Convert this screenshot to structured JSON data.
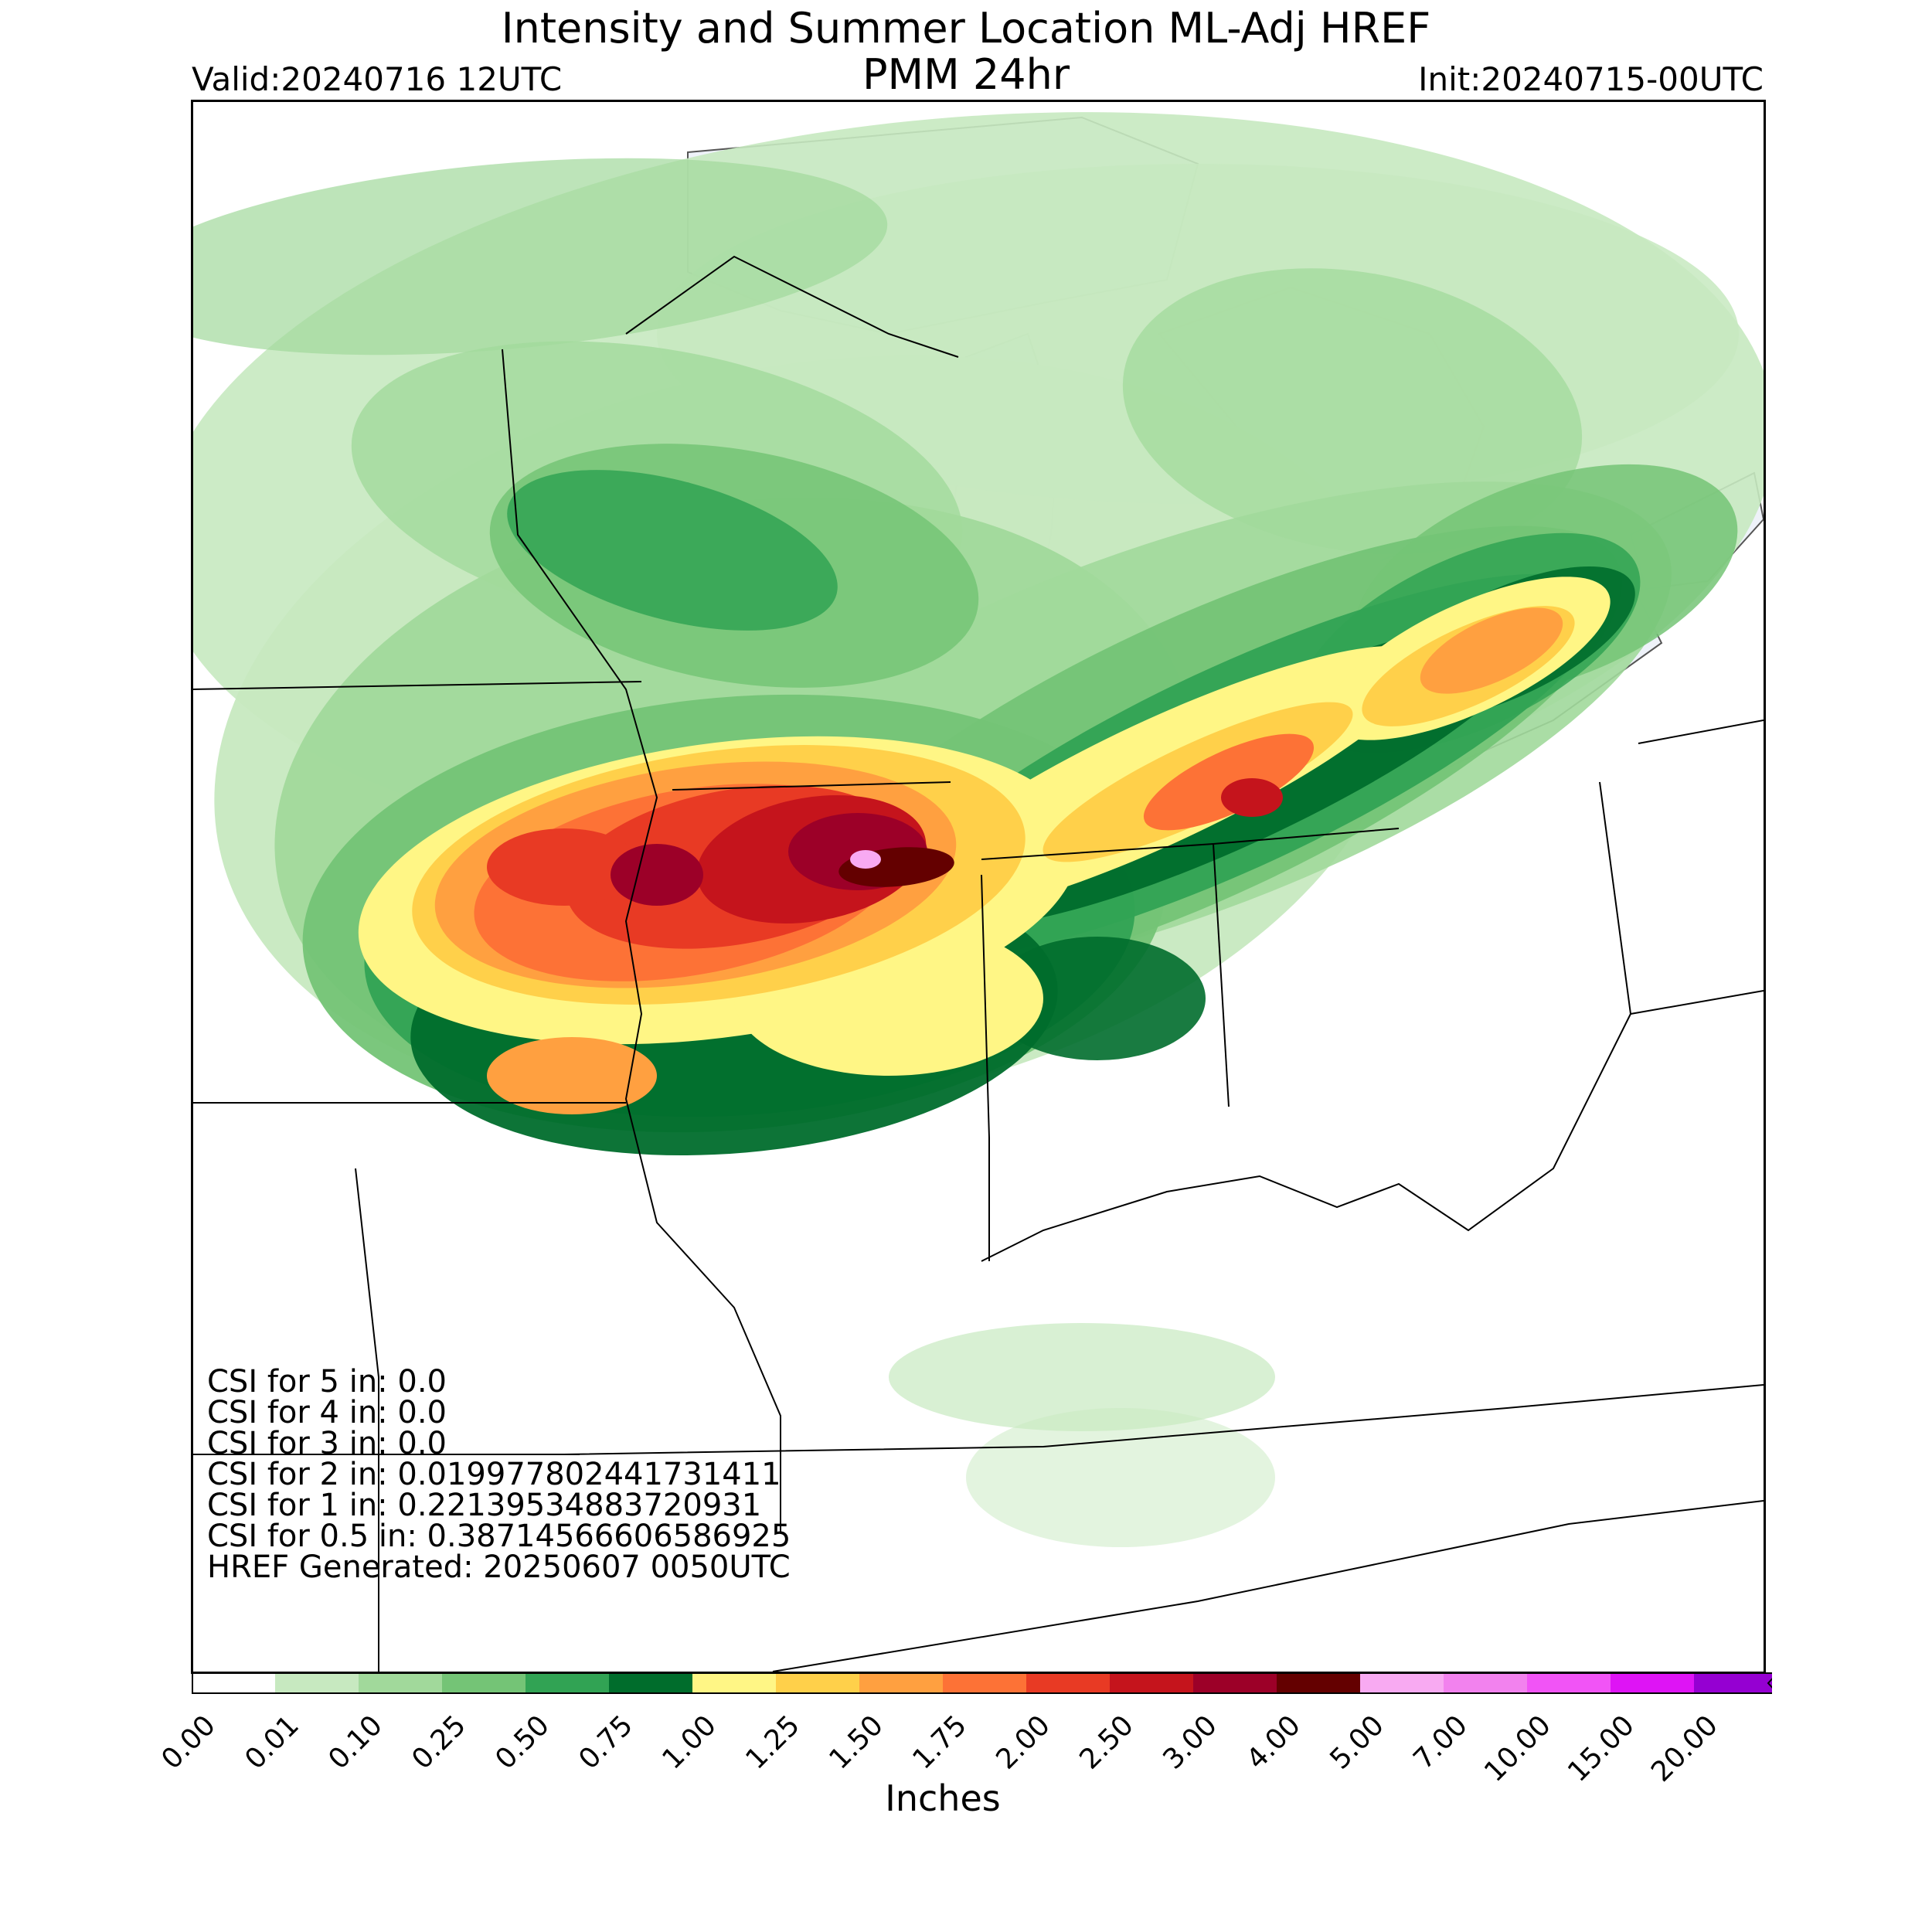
{
  "title": {
    "line1": "Intensity and Summer Location ML-Adj HREF",
    "line2": "PMM 24hr",
    "valid": "Valid:20240716 12UTC",
    "init": "Init:20240715-00UTC"
  },
  "stats": [
    "CSI for 5 in: 0.0",
    "CSI for 4 in: 0.0",
    "CSI for 3 in: 0.0",
    "CSI for 2 in: 0.019977802441731411",
    "CSI for 1 in: 0.22139534883720931",
    "CSI for 0.5 in: 0.38714566606586925",
    "HREF Generated: 20250607 0050UTC"
  ],
  "colorbar": {
    "label": "Inches",
    "ticks": [
      "0.00",
      "0.01",
      "0.10",
      "0.25",
      "0.50",
      "0.75",
      "1.00",
      "1.25",
      "1.50",
      "1.75",
      "2.00",
      "2.50",
      "3.00",
      "4.00",
      "5.00",
      "7.00",
      "10.00",
      "15.00",
      "20.00"
    ],
    "colors": [
      "#ffffff",
      "#c7e9c0",
      "#a1d99b",
      "#74c476",
      "#31a354",
      "#006d2c",
      "#fff685",
      "#ffd04a",
      "#ffa040",
      "#fd7236",
      "#e83a24",
      "#c5141c",
      "#9c0028",
      "#640000",
      "#f8aaf2",
      "#f282ee",
      "#f154f6",
      "#de14f5",
      "#9500d2"
    ]
  },
  "colors": {
    "lake": "#eef2f9",
    "land": "#ffffff",
    "border": "#000000"
  }
}
